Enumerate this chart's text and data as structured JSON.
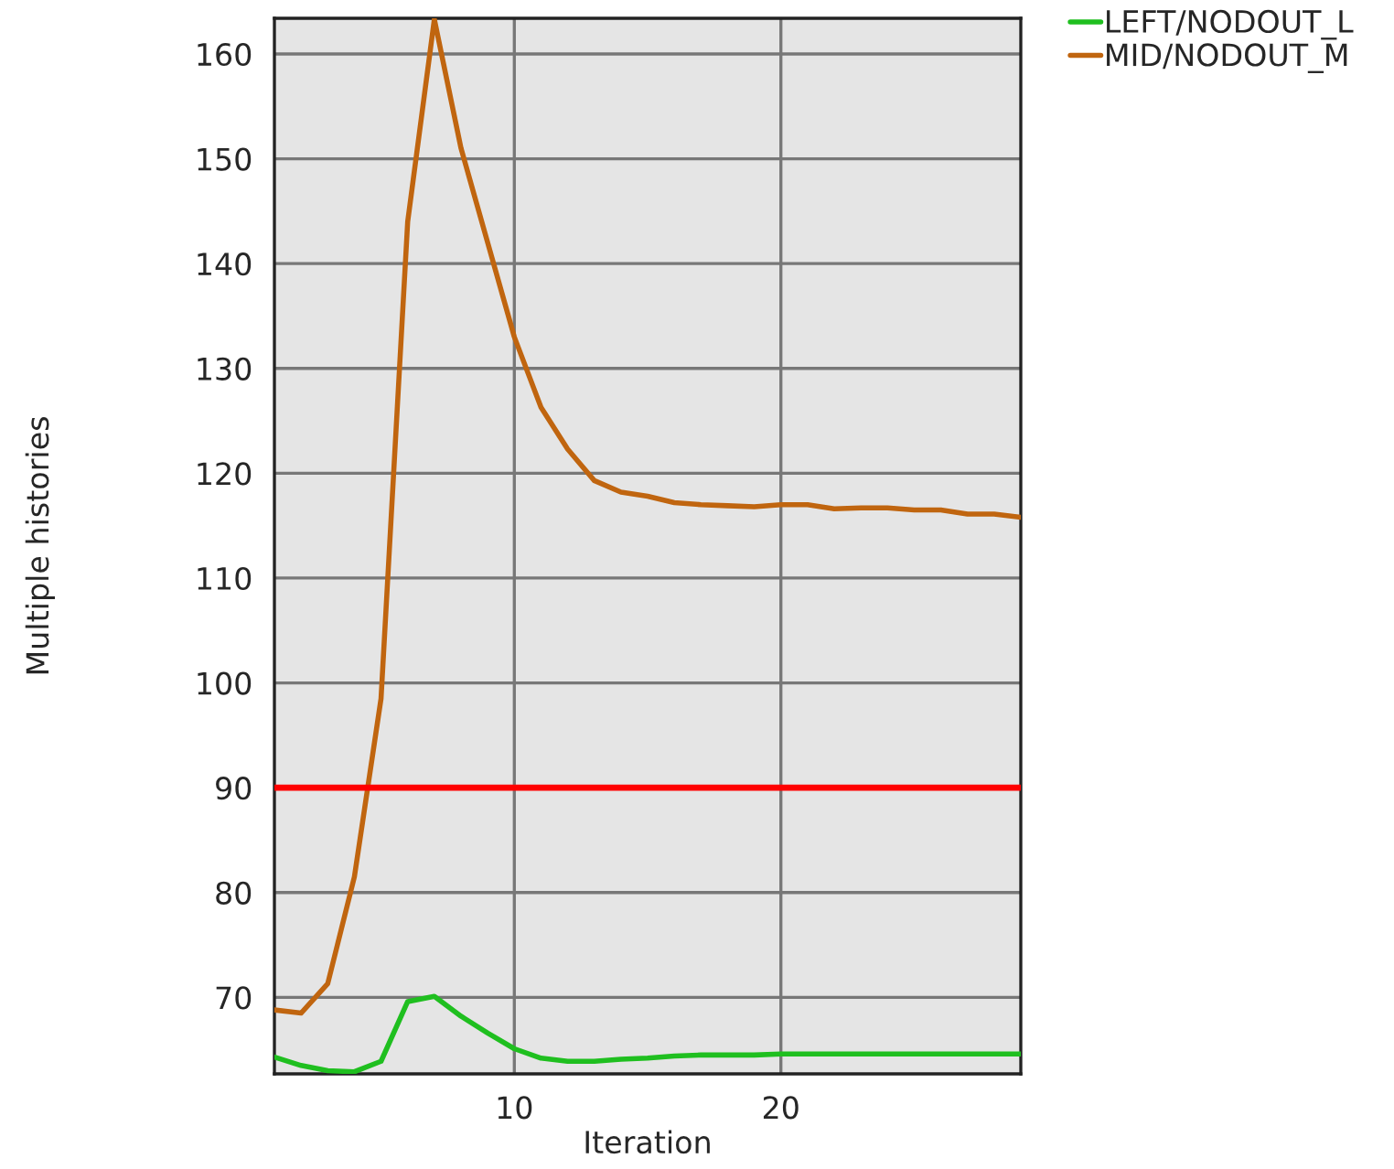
{
  "chart_data": {
    "type": "line",
    "xlabel": "Iteration",
    "ylabel": "Multiple histories",
    "x": [
      1,
      2,
      3,
      4,
      5,
      6,
      7,
      8,
      9,
      10,
      11,
      12,
      13,
      14,
      15,
      16,
      17,
      18,
      19,
      20,
      21,
      22,
      23,
      24,
      25,
      26,
      27,
      28,
      29
    ],
    "series": [
      {
        "name": "LEFT/NODOUT_L",
        "color": "#1fbf1f",
        "values": [
          64.3,
          63.5,
          63.0,
          62.9,
          63.9,
          69.6,
          70.1,
          68.2,
          66.6,
          65.1,
          64.2,
          63.9,
          63.9,
          64.1,
          64.2,
          64.4,
          64.5,
          64.5,
          64.5,
          64.6,
          64.6,
          64.6,
          64.6,
          64.6,
          64.6,
          64.6,
          64.6,
          64.6,
          64.6
        ]
      },
      {
        "name": "MID/NODOUT_M",
        "color": "#c0650f",
        "values": [
          68.8,
          68.5,
          71.3,
          81.5,
          98.5,
          144,
          163.3,
          151,
          142,
          133,
          126.3,
          122.3,
          119.3,
          118.2,
          117.8,
          117.2,
          117,
          116.9,
          116.8,
          117,
          117,
          116.6,
          116.7,
          116.7,
          116.5,
          116.5,
          116.1,
          116.1,
          115.8
        ]
      }
    ],
    "xlim": [
      1,
      29
    ],
    "xticks": [
      10,
      20
    ],
    "ylim": [
      62.7,
      163.4
    ],
    "yticks": [
      70,
      80,
      90,
      100,
      110,
      120,
      130,
      140,
      150,
      160
    ],
    "ref_lines": [
      {
        "axis": "y",
        "value": 90,
        "color": "#ff0000"
      }
    ],
    "grid": true,
    "legend": "top right",
    "line_style": "solid",
    "marker": "none"
  }
}
